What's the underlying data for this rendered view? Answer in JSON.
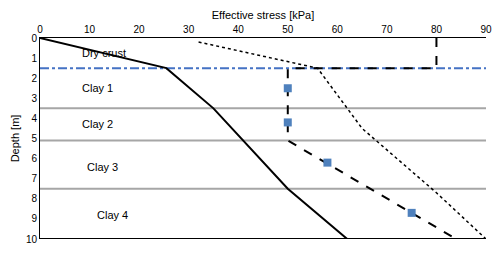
{
  "chart_data": {
    "type": "line",
    "x_label": "Effective stress [kPa]",
    "y_label": "Depth [m]",
    "xlim": [
      0,
      90
    ],
    "xticks": [
      0,
      10,
      20,
      30,
      40,
      50,
      60,
      70,
      80,
      90
    ],
    "ylim": [
      10,
      0
    ],
    "yticks": [
      0,
      1,
      2,
      3,
      4,
      5,
      6,
      7,
      8,
      9,
      10
    ],
    "grid": false,
    "series": [
      {
        "x": [
          0,
          90
        ],
        "values": [
          3.5,
          3.5
        ],
        "color": "#a6a6a6",
        "line_style": "solid"
      },
      {
        "x": [
          0,
          90
        ],
        "values": [
          5.1,
          5.1
        ],
        "color": "#a6a6a6",
        "line_style": "solid"
      },
      {
        "x": [
          0,
          90
        ],
        "values": [
          7.5,
          7.5
        ],
        "color": "#a6a6a6",
        "line_style": "solid"
      },
      {
        "x": [
          0,
          90
        ],
        "values": [
          10,
          10
        ],
        "color": "#000000",
        "line_style": "solid"
      },
      {
        "x": [
          0,
          90
        ],
        "values": [
          1.5,
          1.5
        ],
        "color": "#4472c4",
        "line_style": "dashdot"
      },
      {
        "x": [
          0,
          25.5,
          35,
          50,
          62
        ],
        "values": [
          0,
          1.5,
          3.5,
          7.5,
          10
        ],
        "color": "#000000",
        "line_style": "solid"
      },
      {
        "x": [
          32,
          56,
          65,
          80,
          90
        ],
        "values": [
          0.2,
          1.5,
          4.5,
          7.7,
          10
        ],
        "color": "#000000",
        "line_style": "dotted"
      },
      {
        "x": [
          80,
          80,
          50,
          50,
          84
        ],
        "values": [
          0,
          1.5,
          1.5,
          5.1,
          10
        ],
        "color": "#000000",
        "line_style": "dashed"
      },
      {
        "type": "scatter",
        "x": [
          50,
          50,
          58,
          75
        ],
        "values": [
          2.5,
          4.2,
          6.2,
          8.7
        ],
        "color": "#4f81bd",
        "marker": "square"
      }
    ],
    "annotations": [
      {
        "text": "Dry crust",
        "x": 8,
        "y": 0.75
      },
      {
        "text": "Clay 1",
        "x": 8,
        "y": 2.5
      },
      {
        "text": "Clay 2",
        "x": 8,
        "y": 4.3
      },
      {
        "text": "Clay 3",
        "x": 9,
        "y": 6.4
      },
      {
        "text": "Clay 4",
        "x": 11,
        "y": 8.8
      }
    ]
  }
}
